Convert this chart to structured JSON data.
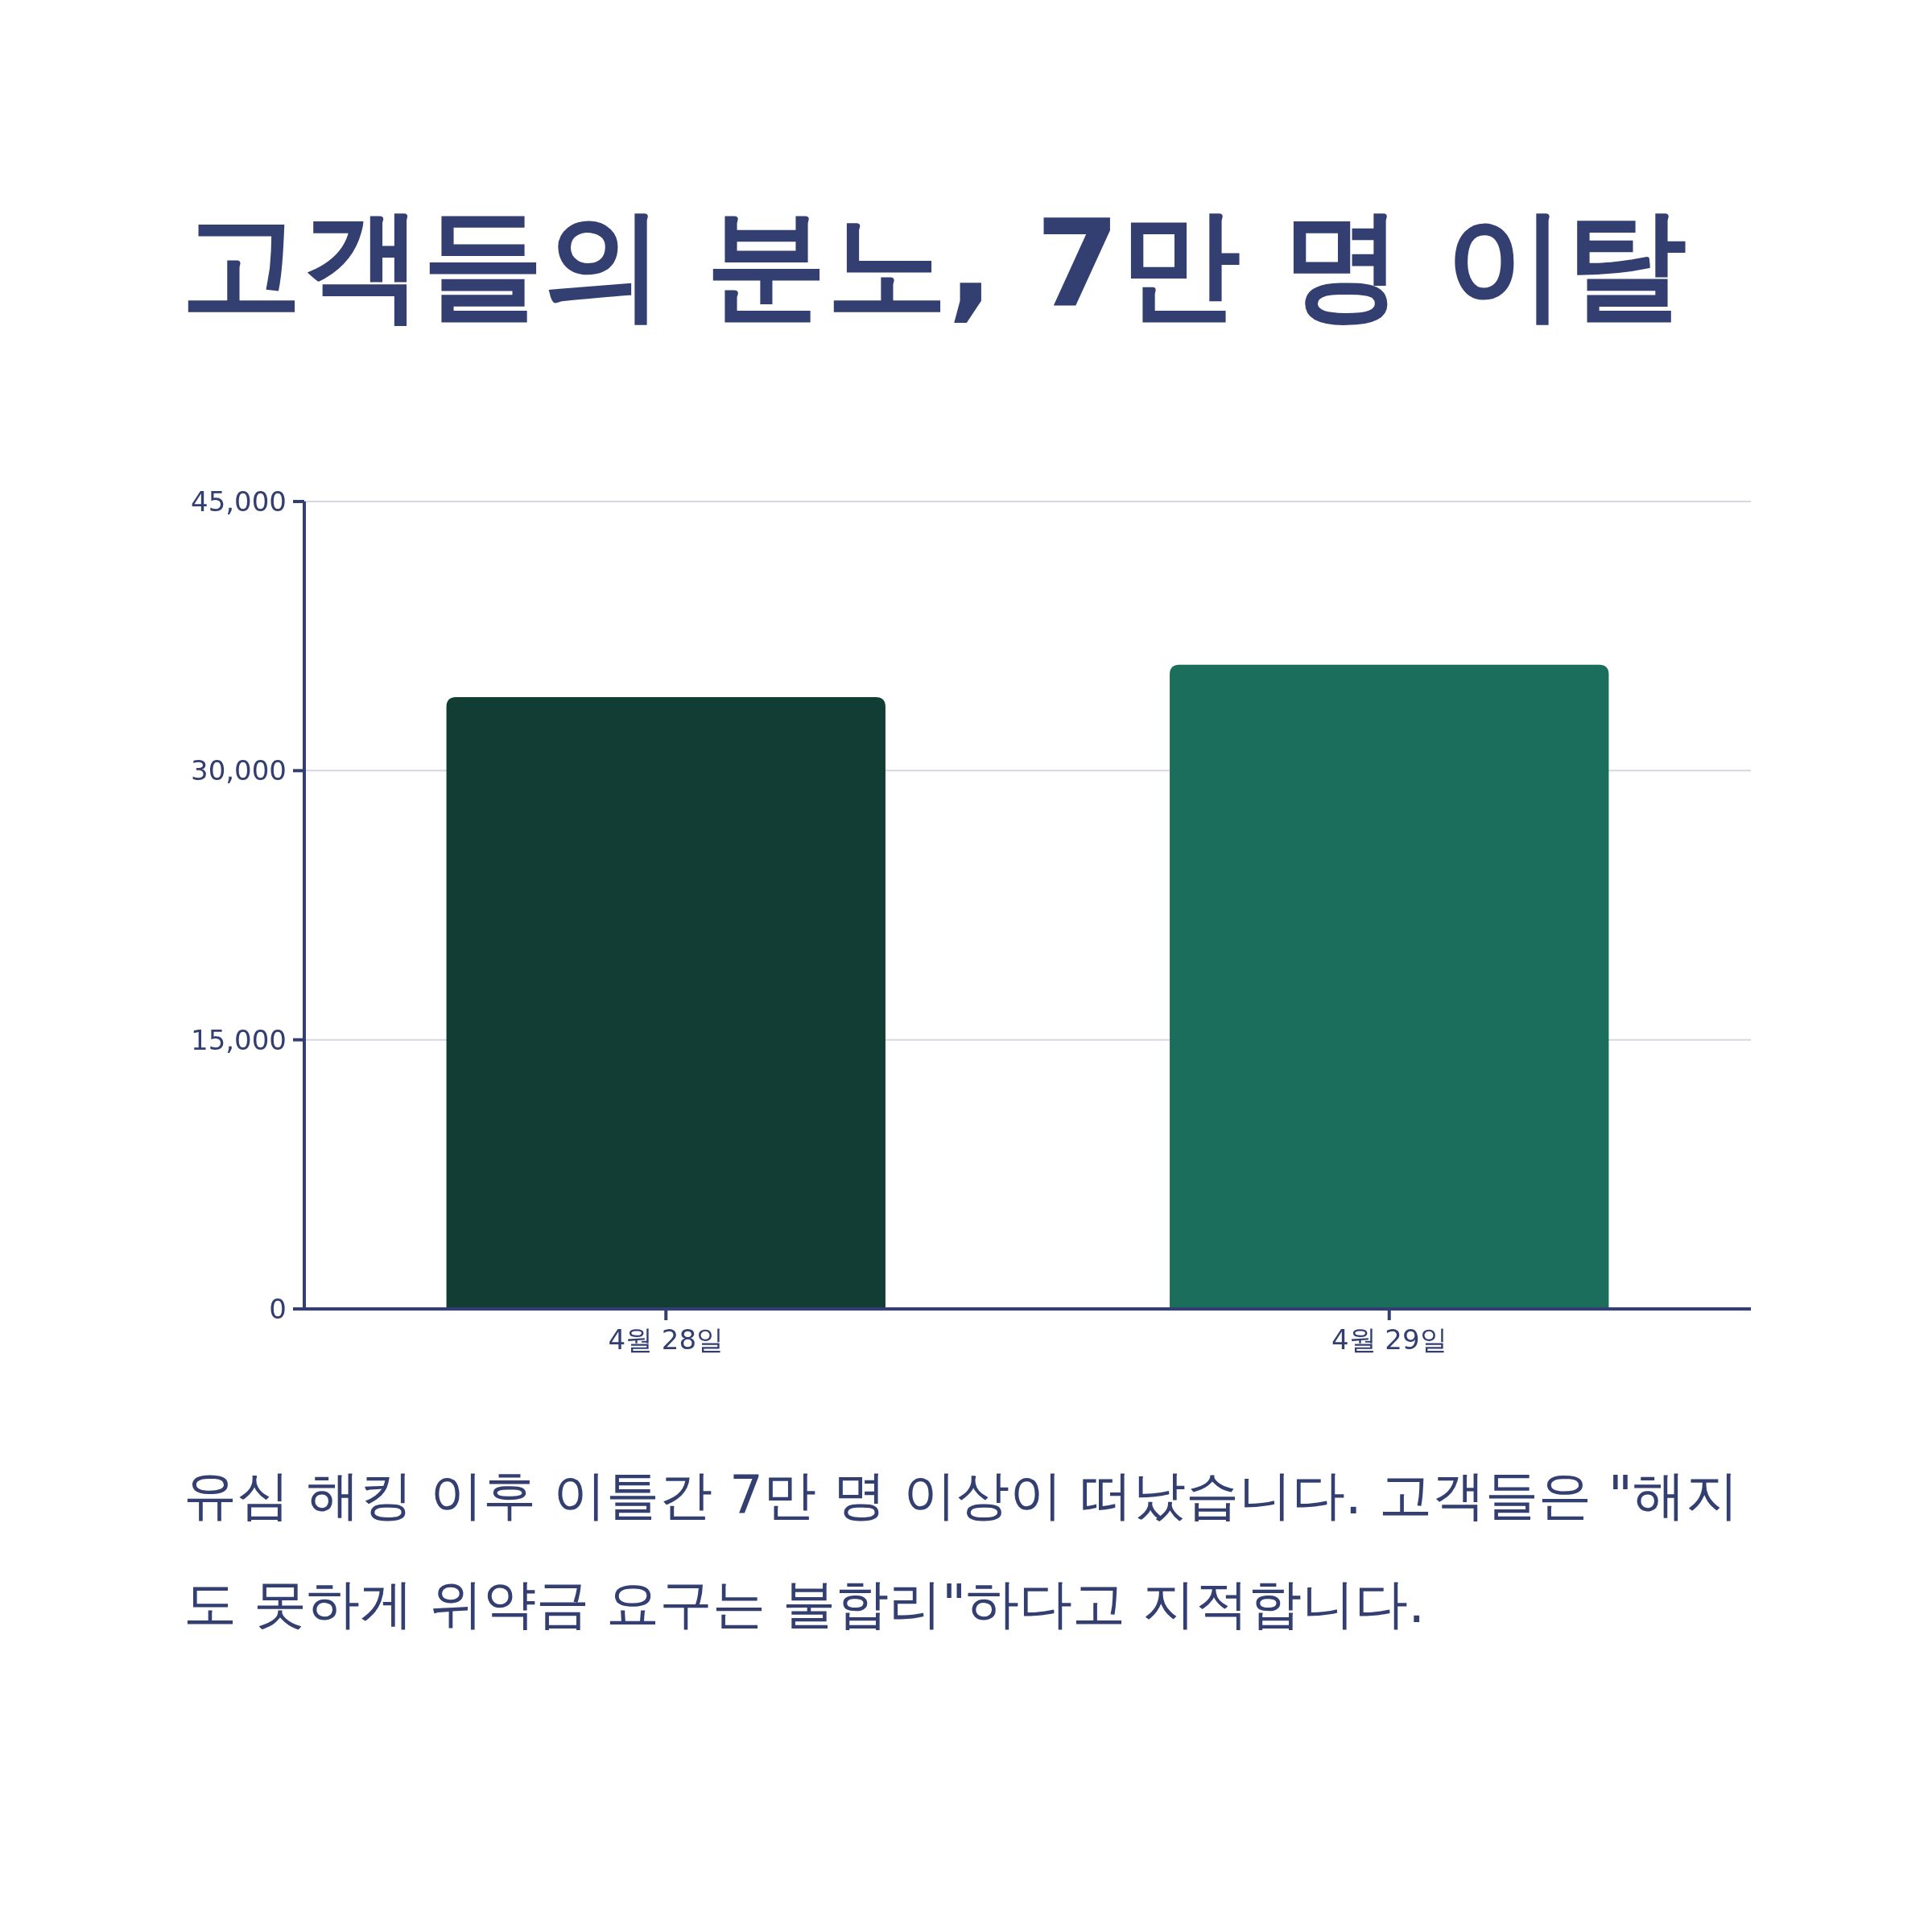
{
  "chart_data": {
    "type": "bar",
    "title": "고객들의 분노, 7만 명 이탈",
    "categories": [
      "4월 28일",
      "4월 29일"
    ],
    "values": [
      34100,
      35900
    ],
    "colors": [
      "#113d35",
      "#1c6e5c"
    ],
    "ylim": [
      0,
      45000
    ],
    "yticks": [
      0,
      {
        "value": 15000,
        "label": "15,000"
      },
      {
        "value": 30000,
        "label": "30,000"
      },
      {
        "value": 45000,
        "label": "45,000"
      }
    ],
    "grid": "y",
    "annotations": [
      "유심 해킹 이후 이틀간 7만 명 이상이 떠났습니다. 고객들은 \"해지도 못하게 위약금 요구는 불합리\"하다고 지적합니다."
    ]
  }
}
